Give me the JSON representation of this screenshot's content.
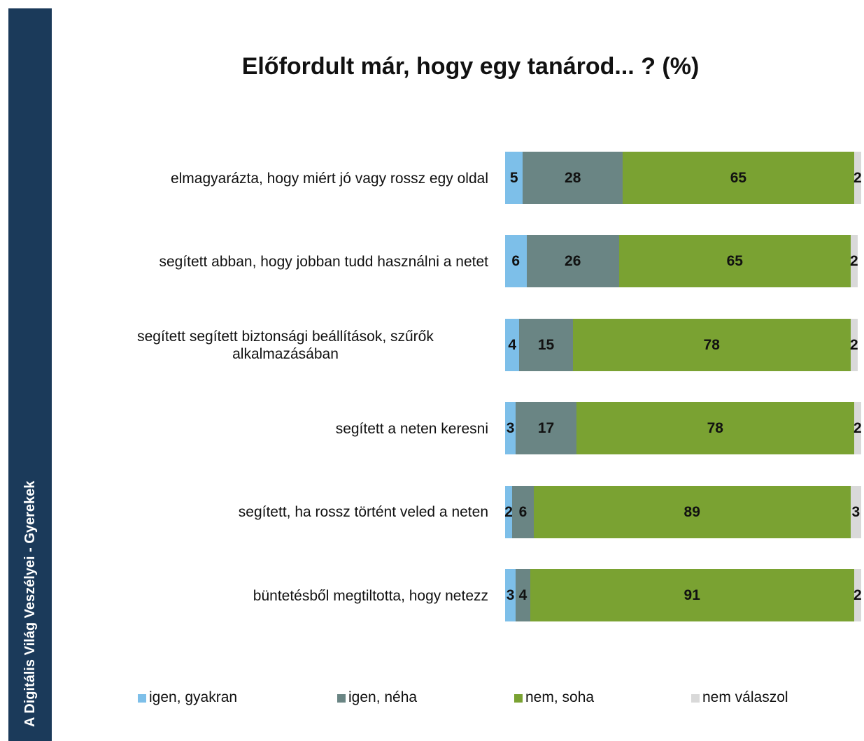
{
  "side_banner": "A Digitális Világ Veszélyei - Gyerekek",
  "chart_data": {
    "type": "stacked-bar-horizontal",
    "title": "Előfordult már, hogy egy tanárod... ? (%)",
    "categories": [
      "elmagyarázta, hogy miért jó vagy rossz egy oldal",
      "segített abban, hogy jobban tudd használni a netet",
      "segített segített biztonsági beállítások, szűrők alkalmazásában",
      "segített a neten keresni",
      "segített, ha rossz történt veled a neten",
      "büntetésből megtiltotta, hogy netezz"
    ],
    "series": [
      {
        "name": "igen, gyakran",
        "color": "#7dbfe9",
        "values": [
          5,
          6,
          4,
          3,
          2,
          3
        ]
      },
      {
        "name": "igen, néha",
        "color": "#6a8584",
        "values": [
          28,
          26,
          15,
          17,
          6,
          4
        ]
      },
      {
        "name": "nem, soha",
        "color": "#7aa232",
        "values": [
          65,
          65,
          78,
          78,
          89,
          91
        ]
      },
      {
        "name": "nem válaszol",
        "color": "#d9d9d9",
        "values": [
          2,
          2,
          2,
          2,
          3,
          2
        ]
      }
    ],
    "xlim": [
      0,
      100
    ],
    "legend": "bottom"
  }
}
